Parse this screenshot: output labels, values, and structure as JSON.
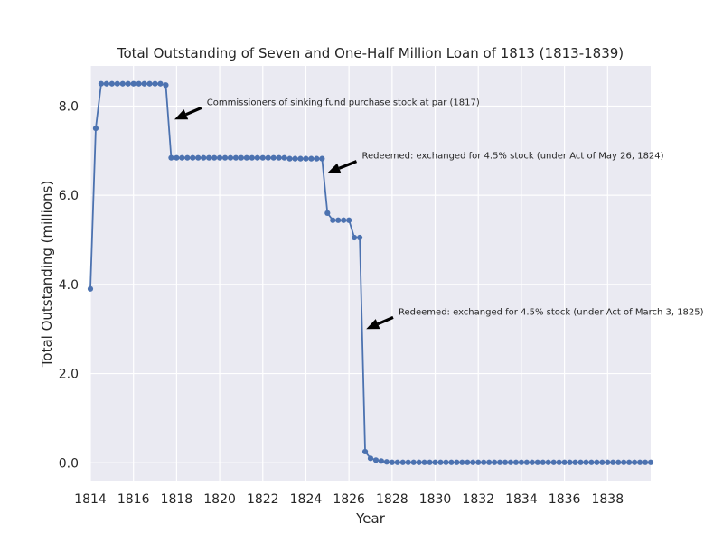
{
  "chart_data": {
    "type": "line",
    "title": "Total Outstanding of Seven and One-Half Million Loan of 1813 (1813-1839)",
    "xlabel": "Year",
    "ylabel": "Total Outstanding (millions)",
    "xlim": [
      1814,
      1840
    ],
    "ylim": [
      -0.42,
      8.9
    ],
    "x_ticks": [
      1814,
      1816,
      1818,
      1820,
      1822,
      1824,
      1826,
      1828,
      1830,
      1832,
      1834,
      1836,
      1838
    ],
    "y_ticks": [
      0.0,
      2.0,
      4.0,
      6.0,
      8.0
    ],
    "grid": true,
    "legend": "none",
    "line_color": "#4c72b0",
    "background": "#eaeaf2",
    "series": [
      {
        "x": [
          1814.0,
          1814.25,
          1814.5,
          1814.75,
          1815.0,
          1815.25,
          1815.5,
          1815.75,
          1816.0,
          1816.25,
          1816.5,
          1816.75,
          1817.0,
          1817.25,
          1817.5,
          1817.75,
          1818.0,
          1818.25,
          1818.5,
          1818.75,
          1819.0,
          1819.25,
          1819.5,
          1819.75,
          1820.0,
          1820.25,
          1820.5,
          1820.75,
          1821.0,
          1821.25,
          1821.5,
          1821.75,
          1822.0,
          1822.25,
          1822.5,
          1822.75,
          1823.0,
          1823.25,
          1823.5,
          1823.75,
          1824.0,
          1824.25,
          1824.5,
          1824.75,
          1825.0,
          1825.25,
          1825.5,
          1825.75,
          1826.0,
          1826.25,
          1826.5,
          1826.75,
          1827.0,
          1827.25,
          1827.5,
          1827.75,
          1828.0,
          1828.25,
          1828.5,
          1828.75,
          1829.0,
          1829.25,
          1829.5,
          1829.75,
          1830.0,
          1830.25,
          1830.5,
          1830.75,
          1831.0,
          1831.25,
          1831.5,
          1831.75,
          1832.0,
          1832.25,
          1832.5,
          1832.75,
          1833.0,
          1833.25,
          1833.5,
          1833.75,
          1834.0,
          1834.25,
          1834.5,
          1834.75,
          1835.0,
          1835.25,
          1835.5,
          1835.75,
          1836.0,
          1836.25,
          1836.5,
          1836.75,
          1837.0,
          1837.25,
          1837.5,
          1837.75,
          1838.0,
          1838.25,
          1838.5,
          1838.75,
          1839.0,
          1839.25,
          1839.5,
          1839.75,
          1840.0
        ],
        "y": [
          3.9,
          7.5,
          8.5,
          8.5,
          8.5,
          8.5,
          8.5,
          8.5,
          8.5,
          8.5,
          8.5,
          8.5,
          8.5,
          8.5,
          8.47,
          6.84,
          6.84,
          6.84,
          6.84,
          6.84,
          6.84,
          6.84,
          6.84,
          6.84,
          6.84,
          6.84,
          6.84,
          6.84,
          6.84,
          6.84,
          6.84,
          6.84,
          6.84,
          6.84,
          6.84,
          6.84,
          6.84,
          6.82,
          6.82,
          6.82,
          6.82,
          6.82,
          6.82,
          6.82,
          5.6,
          5.44,
          5.44,
          5.44,
          5.44,
          5.05,
          5.05,
          0.25,
          0.1,
          0.06,
          0.04,
          0.02,
          0.01,
          0.01,
          0.01,
          0.01,
          0.01,
          0.01,
          0.01,
          0.01,
          0.01,
          0.01,
          0.01,
          0.01,
          0.01,
          0.01,
          0.01,
          0.01,
          0.01,
          0.01,
          0.01,
          0.01,
          0.01,
          0.01,
          0.01,
          0.01,
          0.01,
          0.01,
          0.01,
          0.01,
          0.01,
          0.01,
          0.01,
          0.01,
          0.01,
          0.01,
          0.01,
          0.01,
          0.01,
          0.01,
          0.01,
          0.01,
          0.01,
          0.01,
          0.01,
          0.01,
          0.01,
          0.01,
          0.01,
          0.01,
          0.01
        ]
      }
    ],
    "annotations": [
      {
        "text": "Commissioners of sinking fund purchase stock at par (1817)",
        "text_x": 1819.4,
        "text_y": 8.0,
        "arrow_x": 1817.9,
        "arrow_y": 7.7
      },
      {
        "text": "Redeemed: exchanged for 4.5% stock (under Act of May 26, 1824)",
        "text_x": 1826.6,
        "text_y": 6.8,
        "arrow_x": 1825.0,
        "arrow_y": 6.5
      },
      {
        "text": "Redeemed: exchanged for 4.5% stock (under Act of March 3, 1825)",
        "text_x": 1828.3,
        "text_y": 3.3,
        "arrow_x": 1826.8,
        "arrow_y": 3.0
      }
    ]
  }
}
